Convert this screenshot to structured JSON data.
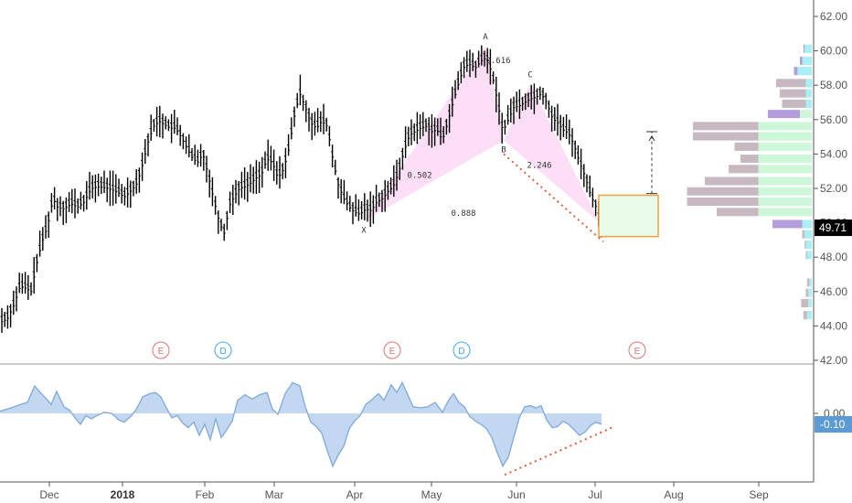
{
  "chart_data": [
    {
      "type": "bar",
      "subtype": "ohlc-price",
      "ylim": [
        42,
        63
      ],
      "y_ticks": [
        "62.00",
        "60.00",
        "58.00",
        "56.00",
        "54.00",
        "52.00",
        "50.00",
        "48.00",
        "46.00",
        "44.00",
        "42.00"
      ],
      "x_ticks": [
        "Dec",
        "2018",
        "Feb",
        "Mar",
        "Apr",
        "May",
        "Jun",
        "Jul",
        "Aug",
        "Sep"
      ],
      "x_tick_bold": "2018",
      "last_price": "49.71",
      "last_price_value": 49.71,
      "accent_color": "#000000",
      "badge_color": "#000000",
      "path_points": [
        [
          0,
          44.3
        ],
        [
          8,
          44.5
        ],
        [
          15,
          45.3
        ],
        [
          22,
          46.4
        ],
        [
          28,
          46.3
        ],
        [
          34,
          46.1
        ],
        [
          40,
          47.7
        ],
        [
          46,
          49.0
        ],
        [
          52,
          49.9
        ],
        [
          58,
          51.5
        ],
        [
          63,
          51.0
        ],
        [
          70,
          50.9
        ],
        [
          78,
          51.2
        ],
        [
          85,
          51.0
        ],
        [
          92,
          51.3
        ],
        [
          100,
          52.1
        ],
        [
          108,
          52.2
        ],
        [
          118,
          52.1
        ],
        [
          128,
          51.9
        ],
        [
          136,
          51.6
        ],
        [
          144,
          52.0
        ],
        [
          150,
          52.4
        ],
        [
          156,
          53.5
        ],
        [
          162,
          54.8
        ],
        [
          168,
          55.7
        ],
        [
          174,
          56.0
        ],
        [
          180,
          55.8
        ],
        [
          186,
          55.6
        ],
        [
          192,
          55.6
        ],
        [
          198,
          55.1
        ],
        [
          204,
          54.5
        ],
        [
          210,
          53.9
        ],
        [
          216,
          53.6
        ],
        [
          222,
          54.1
        ],
        [
          228,
          52.8
        ],
        [
          234,
          51.4
        ],
        [
          240,
          50.1
        ],
        [
          246,
          49.4
        ],
        [
          250,
          51.0
        ],
        [
          256,
          51.6
        ],
        [
          262,
          52.1
        ],
        [
          268,
          52.2
        ],
        [
          274,
          52.4
        ],
        [
          280,
          52.7
        ],
        [
          286,
          52.9
        ],
        [
          292,
          53.8
        ],
        [
          298,
          53.6
        ],
        [
          304,
          52.7
        ],
        [
          310,
          53.2
        ],
        [
          316,
          54.4
        ],
        [
          322,
          56.3
        ],
        [
          328,
          57.6
        ],
        [
          334,
          56.8
        ],
        [
          340,
          55.9
        ],
        [
          346,
          55.6
        ],
        [
          352,
          56.0
        ],
        [
          358,
          55.7
        ],
        [
          364,
          53.8
        ],
        [
          370,
          52.3
        ],
        [
          376,
          51.5
        ],
        [
          382,
          51.0
        ],
        [
          388,
          50.7
        ],
        [
          394,
          50.6
        ],
        [
          400,
          50.9
        ],
        [
          406,
          50.8
        ],
        [
          412,
          51.3
        ],
        [
          418,
          51.5
        ],
        [
          424,
          51.9
        ],
        [
          430,
          52.2
        ],
        [
          436,
          53.0
        ],
        [
          442,
          54.3
        ],
        [
          448,
          55.2
        ],
        [
          454,
          55.4
        ],
        [
          460,
          55.6
        ],
        [
          466,
          55.7
        ],
        [
          472,
          55.4
        ],
        [
          478,
          55.5
        ],
        [
          484,
          54.9
        ],
        [
          490,
          56.0
        ],
        [
          496,
          57.2
        ],
        [
          502,
          58.3
        ],
        [
          508,
          59.2
        ],
        [
          514,
          59.3
        ],
        [
          520,
          59.1
        ],
        [
          526,
          59.5
        ],
        [
          532,
          59.7
        ],
        [
          538,
          58.8
        ],
        [
          544,
          57.2
        ],
        [
          550,
          55.4
        ],
        [
          556,
          56.1
        ],
        [
          562,
          56.8
        ],
        [
          568,
          56.9
        ],
        [
          574,
          57.1
        ],
        [
          580,
          57.3
        ],
        [
          586,
          57.4
        ],
        [
          592,
          57.6
        ],
        [
          598,
          57.1
        ],
        [
          604,
          56.2
        ],
        [
          610,
          55.9
        ],
        [
          616,
          55.5
        ],
        [
          622,
          55.3
        ],
        [
          628,
          54.6
        ],
        [
          634,
          53.6
        ],
        [
          640,
          52.8
        ],
        [
          646,
          51.7
        ],
        [
          652,
          51.0
        ],
        [
          656,
          50.1
        ],
        [
          659,
          49.71
        ]
      ],
      "pattern": {
        "points": [
          {
            "label": "X",
            "t": 398,
            "price": 50.1
          },
          {
            "label": "A",
            "t": 531,
            "price": 60.3
          },
          {
            "label": "B",
            "t": 551,
            "price": 54.8
          },
          {
            "label": "C",
            "t": 580,
            "price": 58.1
          },
          {
            "t": 656,
            "price": 50.0
          }
        ],
        "ratios": [
          {
            "label": "0.616",
            "t": 545,
            "price": 59.3
          },
          {
            "label": "0.502",
            "t": 459,
            "price": 52.6
          },
          {
            "label": "2.246",
            "t": 590,
            "price": 53.2
          },
          {
            "label": "0.888",
            "t": 507,
            "price": 50.4
          }
        ]
      },
      "target_box": {
        "t1": 655,
        "t2": 720,
        "top": 51.6,
        "bottom": 49.2
      },
      "target_arrow": {
        "t": 713,
        "from": 51.7,
        "to": 55.3
      },
      "trend_line": {
        "t1": 551,
        "p1": 54.0,
        "t2": 660,
        "p2": 48.9
      },
      "events": [
        {
          "label": "E",
          "t": 176,
          "color": "#e57373"
        },
        {
          "label": "D",
          "t": 244,
          "color": "#42a5f5"
        },
        {
          "label": "E",
          "t": 429,
          "color": "#e57373"
        },
        {
          "label": "D",
          "t": 505,
          "color": "#42a5f5"
        },
        {
          "label": "E",
          "t": 697,
          "color": "#e57373"
        }
      ],
      "volume_profile": [
        {
          "price": 60.1,
          "up": 0.06,
          "down": 0.01
        },
        {
          "price": 59.4,
          "up": 0.08,
          "down": 0.02
        },
        {
          "price": 58.8,
          "up": 0.12,
          "down": 0.03
        },
        {
          "price": 58.1,
          "up": 0.05,
          "down": 0.25
        },
        {
          "price": 57.5,
          "up": 0.05,
          "down": 0.22
        },
        {
          "price": 56.9,
          "up": 0.05,
          "down": 0.2
        },
        {
          "price": 56.3,
          "up": 0.1,
          "down": 0.27
        },
        {
          "price": 55.6,
          "up": 0.45,
          "down": 0.55
        },
        {
          "price": 55.0,
          "up": 0.45,
          "down": 0.55
        },
        {
          "price": 54.4,
          "up": 0.45,
          "down": 0.2
        },
        {
          "price": 53.7,
          "up": 0.45,
          "down": 0.15
        },
        {
          "price": 53.1,
          "up": 0.45,
          "down": 0.25
        },
        {
          "price": 52.4,
          "up": 0.45,
          "down": 0.45
        },
        {
          "price": 51.8,
          "up": 0.45,
          "down": 0.6
        },
        {
          "price": 51.2,
          "up": 0.45,
          "down": 0.6
        },
        {
          "price": 50.6,
          "up": 0.45,
          "down": 0.35
        },
        {
          "price": 49.9,
          "up": 0.08,
          "down": 0.25
        },
        {
          "price": 49.3,
          "up": 0.06,
          "down": 0.02
        },
        {
          "price": 48.7,
          "up": 0.05,
          "down": 0.01
        },
        {
          "price": 48.1,
          "up": 0.04,
          "down": 0.01
        },
        {
          "price": 46.5,
          "up": 0.02,
          "down": 0.02
        },
        {
          "price": 45.9,
          "up": 0.03,
          "down": 0.02
        },
        {
          "price": 45.3,
          "up": 0.03,
          "down": 0.06
        },
        {
          "price": 44.6,
          "up": 0.04,
          "down": 0.03
        }
      ],
      "colors": {
        "up_volume": "#7fffd4",
        "down_volume": "#c8b8c0",
        "poc": "#b39ddb",
        "pattern_fill": "#fbd9f5",
        "box_fill": "#e8fbe8",
        "box_stroke": "#f0a040",
        "trend_dots": "#e65a3a"
      }
    },
    {
      "type": "area",
      "subtype": "oscillator",
      "ylim": [
        -0.6,
        0.4
      ],
      "y_ticks": [
        "0.00"
      ],
      "last_value": "-0.10",
      "last_value_num": -0.1,
      "badge_color": "#5b9bd5",
      "fill_color": "#bcd4ee",
      "line_color": "#7ea8dd",
      "values": [
        [
          0,
          0.02
        ],
        [
          12,
          0.05
        ],
        [
          22,
          0.08
        ],
        [
          30,
          0.1
        ],
        [
          38,
          0.25
        ],
        [
          44,
          0.19
        ],
        [
          50,
          0.14
        ],
        [
          56,
          0.08
        ],
        [
          62,
          0.2
        ],
        [
          70,
          0.06
        ],
        [
          76,
          0.03
        ],
        [
          82,
          -0.04
        ],
        [
          88,
          -0.1
        ],
        [
          94,
          -0.02
        ],
        [
          100,
          -0.05
        ],
        [
          106,
          -0.02
        ],
        [
          114,
          0.01
        ],
        [
          122,
          0.0
        ],
        [
          130,
          -0.06
        ],
        [
          136,
          -0.08
        ],
        [
          144,
          -0.02
        ],
        [
          150,
          0.05
        ],
        [
          156,
          0.15
        ],
        [
          164,
          0.18
        ],
        [
          170,
          0.19
        ],
        [
          176,
          0.15
        ],
        [
          182,
          0.05
        ],
        [
          188,
          -0.04
        ],
        [
          194,
          -0.02
        ],
        [
          200,
          -0.09
        ],
        [
          206,
          -0.13
        ],
        [
          212,
          -0.08
        ],
        [
          218,
          -0.2
        ],
        [
          224,
          -0.1
        ],
        [
          230,
          -0.24
        ],
        [
          236,
          -0.05
        ],
        [
          242,
          -0.22
        ],
        [
          248,
          -0.15
        ],
        [
          254,
          -0.07
        ],
        [
          260,
          0.12
        ],
        [
          268,
          0.17
        ],
        [
          276,
          0.13
        ],
        [
          284,
          0.17
        ],
        [
          292,
          0.19
        ],
        [
          298,
          0.04
        ],
        [
          304,
          -0.01
        ],
        [
          312,
          0.18
        ],
        [
          320,
          0.28
        ],
        [
          328,
          0.25
        ],
        [
          334,
          0.06
        ],
        [
          340,
          -0.08
        ],
        [
          346,
          -0.12
        ],
        [
          352,
          -0.18
        ],
        [
          358,
          -0.34
        ],
        [
          364,
          -0.48
        ],
        [
          370,
          -0.38
        ],
        [
          376,
          -0.3
        ],
        [
          382,
          -0.14
        ],
        [
          388,
          -0.07
        ],
        [
          394,
          -0.02
        ],
        [
          400,
          0.08
        ],
        [
          406,
          0.12
        ],
        [
          414,
          0.18
        ],
        [
          420,
          0.12
        ],
        [
          428,
          0.26
        ],
        [
          434,
          0.19
        ],
        [
          440,
          0.28
        ],
        [
          446,
          0.17
        ],
        [
          452,
          0.06
        ],
        [
          460,
          0.05
        ],
        [
          468,
          0.06
        ],
        [
          476,
          0.1
        ],
        [
          484,
          0.01
        ],
        [
          490,
          0.11
        ],
        [
          496,
          0.18
        ],
        [
          502,
          0.1
        ],
        [
          508,
          0.06
        ],
        [
          514,
          -0.03
        ],
        [
          520,
          -0.07
        ],
        [
          526,
          -0.1
        ],
        [
          532,
          -0.14
        ],
        [
          538,
          -0.22
        ],
        [
          544,
          -0.36
        ],
        [
          550,
          -0.48
        ],
        [
          556,
          -0.4
        ],
        [
          562,
          -0.22
        ],
        [
          568,
          -0.04
        ],
        [
          574,
          0.06
        ],
        [
          580,
          0.07
        ],
        [
          586,
          0.05
        ],
        [
          592,
          0.07
        ],
        [
          598,
          -0.06
        ],
        [
          604,
          -0.13
        ],
        [
          610,
          -0.12
        ],
        [
          616,
          -0.07
        ],
        [
          622,
          -0.1
        ],
        [
          628,
          -0.15
        ],
        [
          634,
          -0.2
        ],
        [
          640,
          -0.17
        ],
        [
          646,
          -0.11
        ],
        [
          652,
          -0.08
        ],
        [
          658,
          -0.1
        ]
      ],
      "trend_line": {
        "t1": 552,
        "v1": -0.56,
        "t2": 672,
        "v2": -0.12
      }
    }
  ]
}
